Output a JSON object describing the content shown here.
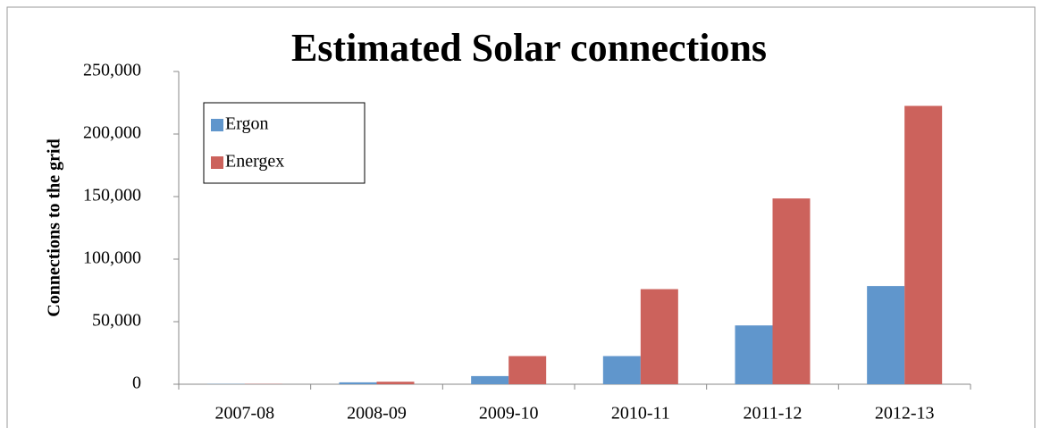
{
  "chart_data": {
    "type": "bar",
    "title": "Estimated Solar connections",
    "y_label": "Connections to the grid",
    "categories": [
      "2007-08",
      "2008-09",
      "2009-10",
      "2010-11",
      "2011-12",
      "2012-13"
    ],
    "series": [
      {
        "name": "Ergon",
        "color": "#6096cc",
        "values": [
          200,
          1500,
          6500,
          22500,
          47000,
          78500
        ]
      },
      {
        "name": "Energex",
        "color": "#cc625c",
        "values": [
          200,
          2000,
          22500,
          76000,
          148500,
          222500
        ]
      }
    ],
    "ylim": [
      0,
      250000
    ],
    "yticks": [
      0,
      {
        "value": 50000,
        "label": "50,000"
      },
      {
        "value": 100000,
        "label": "100,000"
      },
      {
        "value": 150000,
        "label": "150,000"
      },
      {
        "value": 200000,
        "label": "200,000"
      },
      {
        "value": 250000,
        "label": "250,000"
      }
    ],
    "legend": "top-left"
  }
}
